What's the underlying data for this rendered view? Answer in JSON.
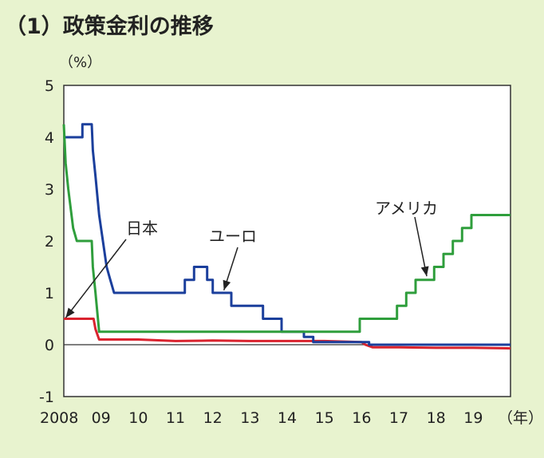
{
  "chart_data": {
    "type": "line",
    "title": "（1）政策金利の推移",
    "ylabel": "（%）",
    "xlabel": "（年）",
    "ylim": [
      -1,
      5
    ],
    "xlim": [
      2008,
      2020
    ],
    "y_ticks": [
      "5",
      "4",
      "3",
      "2",
      "1",
      "0",
      "-1"
    ],
    "x_ticks": [
      "2008",
      "09",
      "10",
      "11",
      "12",
      "13",
      "14",
      "15",
      "16",
      "17",
      "18",
      "19"
    ],
    "grid": false,
    "annotations": [
      "日本",
      "ユーロ",
      "アメリカ"
    ],
    "series": [
      {
        "name": "日本",
        "color": "#d9232e",
        "points": [
          [
            2008.0,
            0.5
          ],
          [
            2008.8,
            0.5
          ],
          [
            2008.85,
            0.3
          ],
          [
            2008.95,
            0.1
          ],
          [
            2010.0,
            0.1
          ],
          [
            2011.0,
            0.07
          ],
          [
            2012.0,
            0.08
          ],
          [
            2013.0,
            0.07
          ],
          [
            2014.0,
            0.07
          ],
          [
            2015.0,
            0.07
          ],
          [
            2016.0,
            0.05
          ],
          [
            2016.1,
            0.0
          ],
          [
            2016.3,
            -0.05
          ],
          [
            2017.0,
            -0.05
          ],
          [
            2018.0,
            -0.06
          ],
          [
            2019.0,
            -0.06
          ],
          [
            2020.0,
            -0.07
          ]
        ]
      },
      {
        "name": "ユーロ",
        "color": "#1b3f9c",
        "points": [
          [
            2008.0,
            4.0
          ],
          [
            2008.5,
            4.0
          ],
          [
            2008.5,
            4.25
          ],
          [
            2008.75,
            4.25
          ],
          [
            2008.78,
            3.75
          ],
          [
            2008.85,
            3.25
          ],
          [
            2008.95,
            2.5
          ],
          [
            2009.05,
            2.0
          ],
          [
            2009.15,
            1.5
          ],
          [
            2009.25,
            1.25
          ],
          [
            2009.35,
            1.0
          ],
          [
            2011.25,
            1.0
          ],
          [
            2011.25,
            1.25
          ],
          [
            2011.5,
            1.25
          ],
          [
            2011.5,
            1.5
          ],
          [
            2011.85,
            1.5
          ],
          [
            2011.85,
            1.25
          ],
          [
            2012.0,
            1.25
          ],
          [
            2012.0,
            1.0
          ],
          [
            2012.5,
            1.0
          ],
          [
            2012.5,
            0.75
          ],
          [
            2013.35,
            0.75
          ],
          [
            2013.35,
            0.5
          ],
          [
            2013.85,
            0.5
          ],
          [
            2013.85,
            0.25
          ],
          [
            2014.45,
            0.25
          ],
          [
            2014.45,
            0.15
          ],
          [
            2014.7,
            0.15
          ],
          [
            2014.7,
            0.05
          ],
          [
            2016.2,
            0.05
          ],
          [
            2016.2,
            0.0
          ],
          [
            2020.0,
            0.0
          ]
        ]
      },
      {
        "name": "アメリカ",
        "color": "#2f9e3c",
        "points": [
          [
            2008.0,
            4.25
          ],
          [
            2008.05,
            3.5
          ],
          [
            2008.12,
            3.0
          ],
          [
            2008.25,
            2.25
          ],
          [
            2008.35,
            2.0
          ],
          [
            2008.75,
            2.0
          ],
          [
            2008.78,
            1.5
          ],
          [
            2008.85,
            1.0
          ],
          [
            2008.95,
            0.25
          ],
          [
            2015.95,
            0.25
          ],
          [
            2015.95,
            0.5
          ],
          [
            2016.95,
            0.5
          ],
          [
            2016.95,
            0.75
          ],
          [
            2017.2,
            0.75
          ],
          [
            2017.2,
            1.0
          ],
          [
            2017.45,
            1.0
          ],
          [
            2017.45,
            1.25
          ],
          [
            2017.95,
            1.25
          ],
          [
            2017.95,
            1.5
          ],
          [
            2018.2,
            1.5
          ],
          [
            2018.2,
            1.75
          ],
          [
            2018.45,
            1.75
          ],
          [
            2018.45,
            2.0
          ],
          [
            2018.7,
            2.0
          ],
          [
            2018.7,
            2.25
          ],
          [
            2018.95,
            2.25
          ],
          [
            2018.95,
            2.5
          ],
          [
            2020.0,
            2.5
          ]
        ]
      }
    ]
  }
}
